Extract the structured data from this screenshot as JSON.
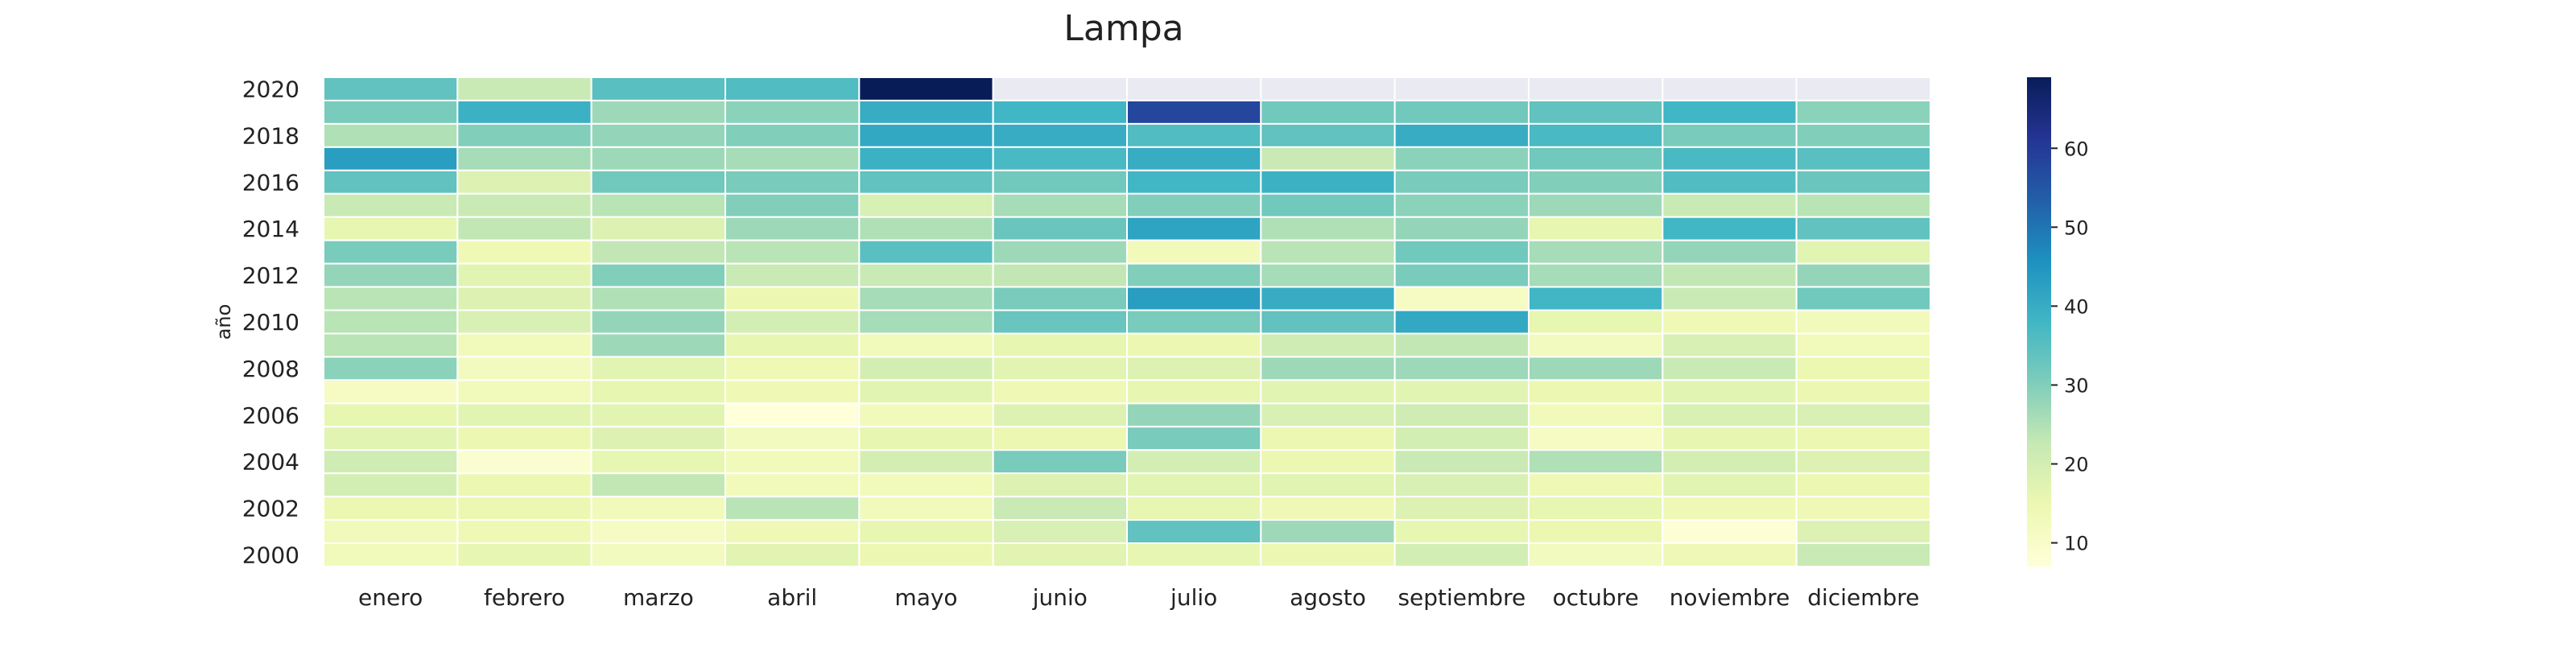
{
  "chart_data": {
    "type": "heatmap",
    "title": "Lampa",
    "xlabel": "",
    "ylabel": "año",
    "x_categories": [
      "enero",
      "febrero",
      "marzo",
      "abril",
      "mayo",
      "junio",
      "julio",
      "agosto",
      "septiembre",
      "octubre",
      "noviembre",
      "diciembre"
    ],
    "y_categories": [
      "2020",
      "2019",
      "2018",
      "2017",
      "2016",
      "2015",
      "2014",
      "2013",
      "2012",
      "2011",
      "2010",
      "2009",
      "2008",
      "2007",
      "2006",
      "2005",
      "2004",
      "2003",
      "2002",
      "2001",
      "2000"
    ],
    "y_tick_labels": [
      "2020",
      "2018",
      "2016",
      "2014",
      "2012",
      "2010",
      "2008",
      "2006",
      "2004",
      "2002",
      "2000"
    ],
    "missing_color": "#eaeaf2",
    "colormap": "YlGnBu",
    "colorbar": {
      "vmin": 7,
      "vmax": 69,
      "ticks": [
        10,
        20,
        30,
        40,
        50,
        60
      ]
    },
    "values": [
      [
        34,
        22,
        35,
        36,
        69,
        null,
        null,
        null,
        null,
        null,
        null,
        null
      ],
      [
        31,
        39,
        27,
        29,
        40,
        38,
        58,
        32,
        32,
        34,
        38,
        29
      ],
      [
        25,
        30,
        28,
        30,
        41,
        40,
        36,
        34,
        40,
        37,
        31,
        30
      ],
      [
        43,
        26,
        27,
        26,
        39,
        37,
        40,
        22,
        29,
        32,
        37,
        35
      ],
      [
        34,
        18,
        32,
        31,
        34,
        32,
        38,
        39,
        31,
        30,
        36,
        33
      ],
      [
        22,
        22,
        24,
        30,
        19,
        26,
        30,
        32,
        29,
        27,
        22,
        24
      ],
      [
        16,
        23,
        18,
        27,
        25,
        33,
        42,
        25,
        28,
        16,
        38,
        34
      ],
      [
        31,
        14,
        23,
        24,
        35,
        27,
        13,
        24,
        32,
        26,
        28,
        17
      ],
      [
        28,
        17,
        30,
        22,
        22,
        23,
        30,
        26,
        31,
        26,
        23,
        28
      ],
      [
        24,
        18,
        25,
        15,
        26,
        31,
        43,
        40,
        11,
        38,
        22,
        32
      ],
      [
        24,
        19,
        28,
        20,
        26,
        33,
        31,
        34,
        41,
        16,
        14,
        13
      ],
      [
        24,
        13,
        27,
        16,
        13,
        16,
        15,
        21,
        23,
        12,
        19,
        13
      ],
      [
        29,
        12,
        17,
        14,
        20,
        17,
        18,
        27,
        27,
        27,
        22,
        15
      ],
      [
        11,
        13,
        16,
        14,
        17,
        14,
        16,
        17,
        17,
        15,
        17,
        15
      ],
      [
        16,
        17,
        17,
        7,
        13,
        18,
        28,
        19,
        21,
        13,
        19,
        19
      ],
      [
        17,
        15,
        18,
        12,
        16,
        15,
        31,
        15,
        20,
        11,
        16,
        15
      ],
      [
        21,
        9,
        16,
        13,
        20,
        31,
        20,
        15,
        22,
        25,
        20,
        18
      ],
      [
        20,
        15,
        23,
        13,
        13,
        18,
        17,
        17,
        19,
        14,
        17,
        15
      ],
      [
        15,
        15,
        13,
        24,
        13,
        22,
        16,
        14,
        18,
        16,
        14,
        14
      ],
      [
        13,
        14,
        11,
        14,
        16,
        19,
        34,
        27,
        16,
        15,
        8,
        18
      ],
      [
        13,
        16,
        12,
        17,
        15,
        17,
        16,
        15,
        20,
        12,
        14,
        22
      ]
    ]
  }
}
